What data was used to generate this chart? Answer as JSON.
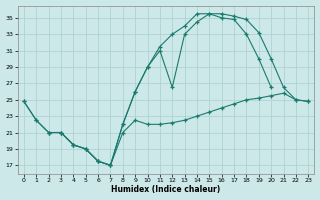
{
  "xlabel": "Humidex (Indice chaleur)",
  "bg_color": "#cce8e8",
  "grid_color": "#aacece",
  "line_color": "#1a7a6e",
  "xlim": [
    -0.5,
    23.5
  ],
  "ylim": [
    16,
    36.5
  ],
  "yticks": [
    17,
    19,
    21,
    23,
    25,
    27,
    29,
    31,
    33,
    35
  ],
  "xticks": [
    0,
    1,
    2,
    3,
    4,
    5,
    6,
    7,
    8,
    9,
    10,
    11,
    12,
    13,
    14,
    15,
    16,
    17,
    18,
    19,
    20,
    21,
    22,
    23
  ],
  "line1_x": [
    0,
    1,
    2,
    3,
    4,
    5,
    6,
    7,
    8,
    9,
    10,
    11,
    12,
    13,
    14,
    15,
    16,
    17,
    18,
    19,
    20
  ],
  "line1_y": [
    24.8,
    22.5,
    21.0,
    21.0,
    19.5,
    19.0,
    17.5,
    17.0,
    22.0,
    26.0,
    29.0,
    31.5,
    33.0,
    34.0,
    35.5,
    35.5,
    35.0,
    34.8,
    33.0,
    30.0,
    26.5
  ],
  "line2_x": [
    0,
    1,
    2,
    3,
    4,
    5,
    6,
    7,
    8,
    9,
    10,
    11,
    12,
    13,
    14,
    15,
    16,
    17,
    18,
    19,
    20,
    21,
    22,
    23
  ],
  "line2_y": [
    24.8,
    22.5,
    21.0,
    21.0,
    19.5,
    19.0,
    17.5,
    17.0,
    22.0,
    26.0,
    29.0,
    31.0,
    26.5,
    33.0,
    34.5,
    35.5,
    35.5,
    35.2,
    34.8,
    33.2,
    30.0,
    26.5,
    25.0,
    24.8
  ],
  "line3_x": [
    2,
    3,
    4,
    5,
    6,
    7,
    8,
    9,
    10,
    11,
    12,
    13,
    14,
    15,
    16,
    17,
    18,
    19,
    20,
    21,
    22,
    23
  ],
  "line3_y": [
    21.0,
    21.0,
    19.5,
    19.0,
    17.5,
    17.0,
    21.0,
    22.5,
    22.0,
    22.0,
    22.2,
    22.5,
    23.0,
    23.5,
    24.0,
    24.5,
    25.0,
    25.2,
    25.5,
    25.8,
    25.0,
    24.8
  ]
}
